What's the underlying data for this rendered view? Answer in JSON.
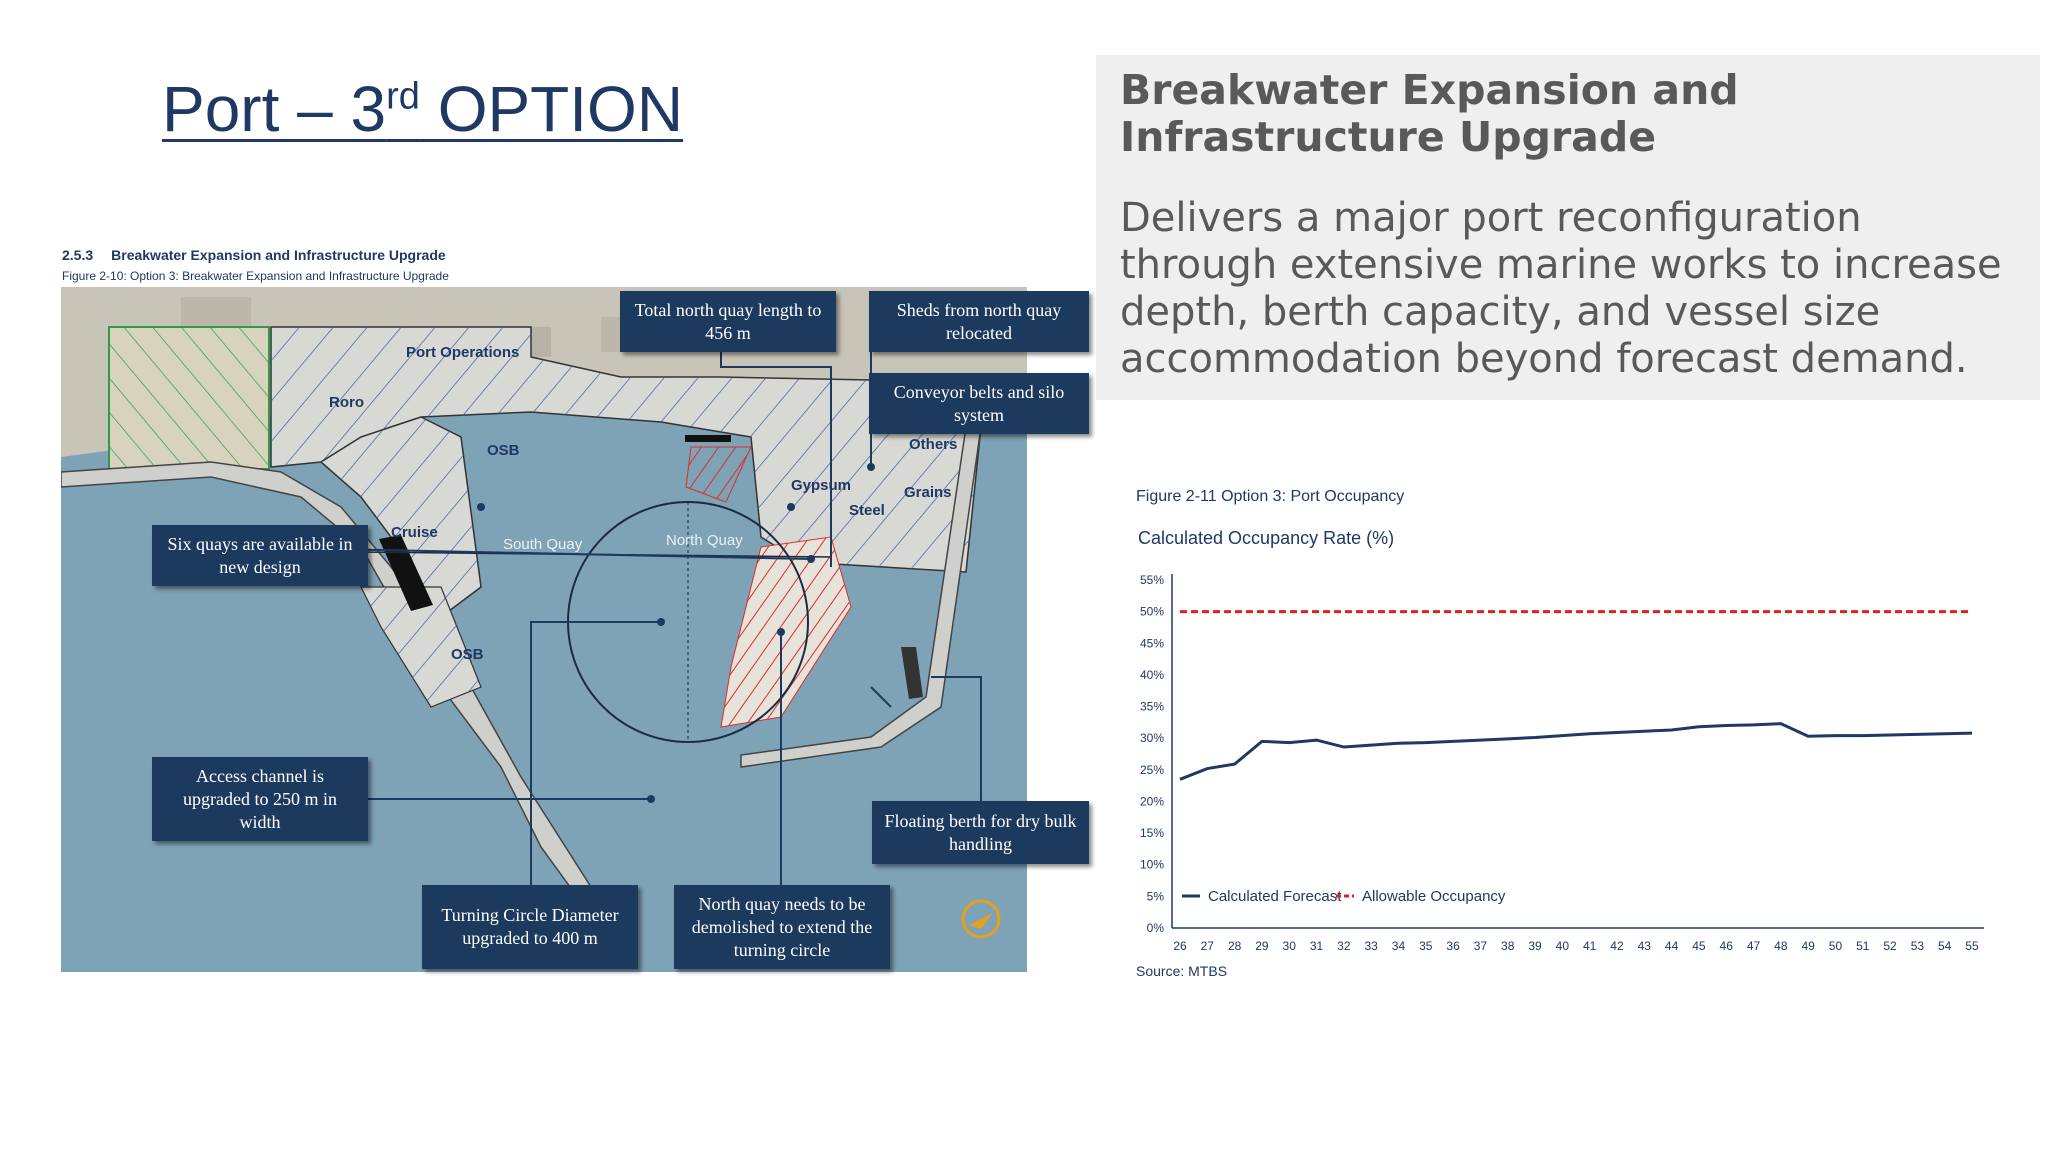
{
  "slide": {
    "title_prefix": "Port – 3",
    "title_sup": "rd",
    "title_suffix": " OPTION"
  },
  "map": {
    "section_number": "2.5.3",
    "section_title": "Breakwater Expansion and Infrastructure Upgrade",
    "figure_caption": "Figure 2-10: Option 3: Breakwater Expansion and Infrastructure Upgrade",
    "zone_labels": {
      "port_operations": "Port Operations",
      "roro": "Roro",
      "osb_top": "OSB",
      "osb_bottom": "OSB",
      "cruise": "Cruise",
      "gypsum": "Gypsum",
      "steel": "Steel",
      "grains": "Grains",
      "others": "Others",
      "south_quay": "South Quay",
      "north_quay": "North Quay"
    },
    "callouts": {
      "north_quay_length": "Total north quay length to 456 m",
      "sheds_relocated": "Sheds from north quay relocated",
      "conveyor_belts": "Conveyor belts and silo system",
      "six_quays": "Six quays are available in new design",
      "access_channel": "Access channel is upgraded to 250 m in width",
      "floating_berth": "Floating berth for dry bulk handling",
      "turning_circle": "Turning Circle Diameter upgraded to 400 m",
      "north_quay_demolish": "North quay needs to be demolished to extend the turning circle"
    },
    "colors": {
      "callout_bg": "#1c3a5e",
      "water": "#7ea2b6",
      "hatch": "#3a5fa0",
      "green_zone": "#2e9a4a",
      "red_hatch": "#d9302a"
    }
  },
  "description": {
    "heading": "Breakwater Expansion and Infrastructure Upgrade",
    "body": "Delivers a major port reconfiguration through extensive marine works to increase depth, berth capacity, and vessel size accommodation beyond forecast demand."
  },
  "chart": {
    "figure_caption": "Figure 2-11 Option 3: Port Occupancy",
    "title": "Calculated Occupancy Rate (%)",
    "source": "Source: MTBS"
  },
  "chart_data": {
    "type": "line",
    "title": "Calculated Occupancy Rate (%)",
    "x": [
      26,
      27,
      28,
      29,
      30,
      31,
      32,
      33,
      34,
      35,
      36,
      37,
      38,
      39,
      40,
      41,
      42,
      43,
      44,
      45,
      46,
      47,
      48,
      49,
      50,
      51,
      52,
      53,
      54,
      55
    ],
    "y_ticks": [
      "0%",
      "5%",
      "10%",
      "15%",
      "20%",
      "25%",
      "30%",
      "35%",
      "40%",
      "45%",
      "50%",
      "55%"
    ],
    "ylim": [
      0,
      55
    ],
    "series": [
      {
        "name": "Calculated Forecast",
        "color": "#1f3864",
        "style": "solid",
        "values": [
          23.5,
          25.2,
          25.9,
          29.5,
          29.3,
          29.7,
          28.6,
          28.9,
          29.2,
          29.3,
          29.5,
          29.7,
          29.9,
          30.1,
          30.4,
          30.7,
          30.9,
          31.1,
          31.3,
          31.8,
          32.0,
          32.1,
          32.3,
          30.3,
          30.4,
          30.4,
          30.5,
          30.6,
          30.7,
          30.8
        ]
      },
      {
        "name": "Allowable Occupancy",
        "color": "#e02020",
        "style": "dashed",
        "values": [
          50,
          50,
          50,
          50,
          50,
          50,
          50,
          50,
          50,
          50,
          50,
          50,
          50,
          50,
          50,
          50,
          50,
          50,
          50,
          50,
          50,
          50,
          50,
          50,
          50,
          50,
          50,
          50,
          50,
          50
        ]
      }
    ],
    "legend_position": "bottom-left",
    "grid": false
  }
}
